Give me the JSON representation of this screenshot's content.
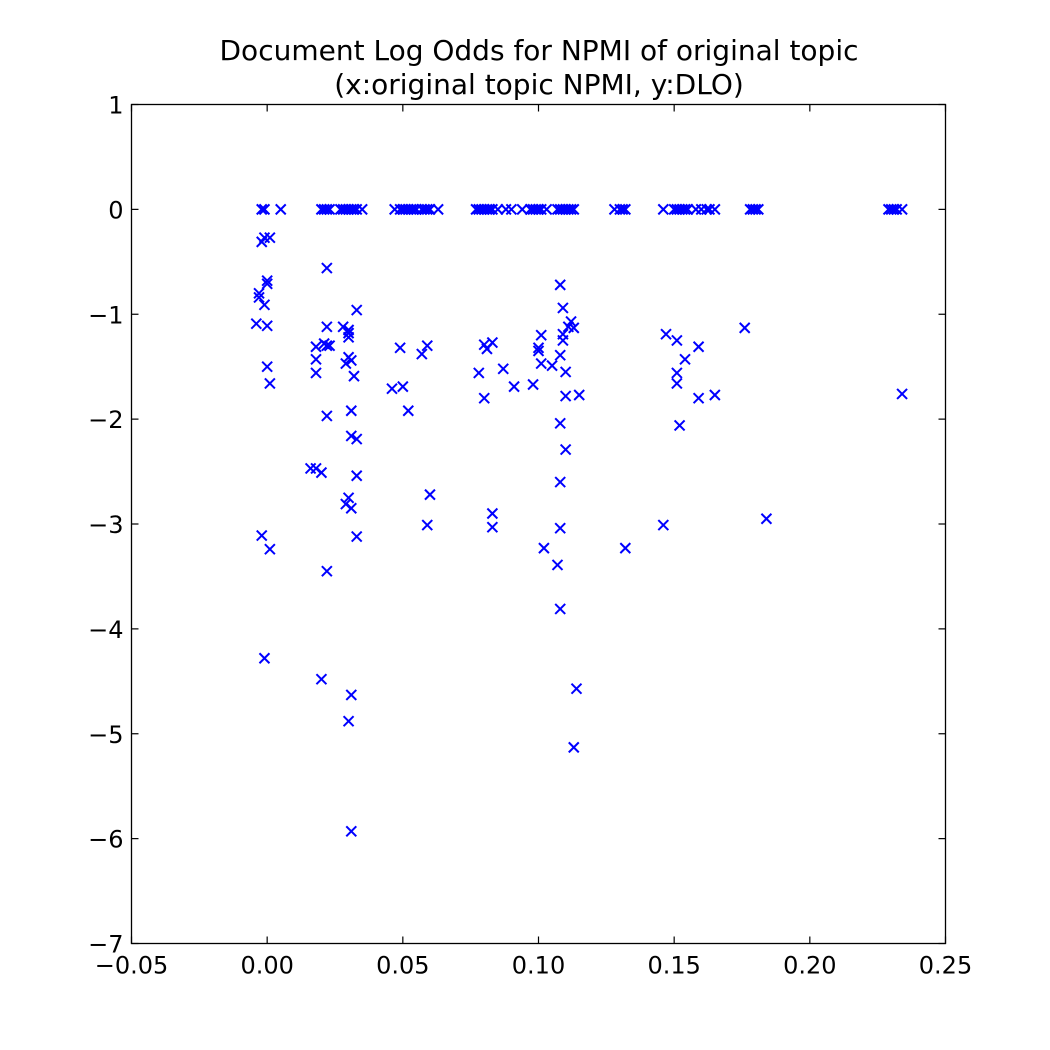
{
  "chart_data": {
    "type": "scatter",
    "title": "Document Log Odds for NPMI of original topic",
    "subtitle": "(x:original topic NPMI, y:DLO)",
    "xlabel": "",
    "ylabel": "",
    "xlim": [
      -0.05,
      0.25
    ],
    "ylim": [
      -7,
      1
    ],
    "xticks": [
      -0.05,
      0.0,
      0.05,
      0.1,
      0.15,
      0.2,
      0.25
    ],
    "xtick_labels": [
      "−0.05",
      "0.00",
      "0.05",
      "0.10",
      "0.15",
      "0.20",
      "0.25"
    ],
    "yticks": [
      1,
      0,
      -1,
      -2,
      -3,
      -4,
      -5,
      -6,
      -7
    ],
    "ytick_labels": [
      "1",
      "0",
      "−1",
      "−2",
      "−3",
      "−4",
      "−5",
      "−6",
      "−7"
    ],
    "grid": false,
    "marker": "x",
    "marker_color": "#0000ff",
    "series": [
      {
        "points": [
          [
            -0.002,
            0
          ],
          [
            -0.001,
            0
          ],
          [
            0.005,
            0
          ],
          [
            0.02,
            0
          ],
          [
            0.021,
            0
          ],
          [
            0.022,
            0
          ],
          [
            0.023,
            0
          ],
          [
            0.027,
            0
          ],
          [
            0.028,
            0
          ],
          [
            0.029,
            0
          ],
          [
            0.03,
            0
          ],
          [
            0.031,
            0
          ],
          [
            0.032,
            0
          ],
          [
            0.033,
            0
          ],
          [
            0.035,
            0
          ],
          [
            0.047,
            0
          ],
          [
            0.049,
            0
          ],
          [
            0.05,
            0
          ],
          [
            0.051,
            0
          ],
          [
            0.052,
            0
          ],
          [
            0.053,
            0
          ],
          [
            0.054,
            0
          ],
          [
            0.055,
            0
          ],
          [
            0.057,
            0
          ],
          [
            0.058,
            0
          ],
          [
            0.059,
            0
          ],
          [
            0.06,
            0
          ],
          [
            0.063,
            0
          ],
          [
            0.077,
            0
          ],
          [
            0.078,
            0
          ],
          [
            0.079,
            0
          ],
          [
            0.08,
            0
          ],
          [
            0.081,
            0
          ],
          [
            0.082,
            0
          ],
          [
            0.083,
            0
          ],
          [
            0.085,
            0
          ],
          [
            0.088,
            0
          ],
          [
            0.09,
            0
          ],
          [
            0.094,
            0
          ],
          [
            0.097,
            0
          ],
          [
            0.098,
            0
          ],
          [
            0.099,
            0
          ],
          [
            0.1,
            0
          ],
          [
            0.101,
            0
          ],
          [
            0.103,
            0
          ],
          [
            0.107,
            0
          ],
          [
            0.108,
            0
          ],
          [
            0.109,
            0
          ],
          [
            0.11,
            0
          ],
          [
            0.111,
            0
          ],
          [
            0.112,
            0
          ],
          [
            0.113,
            0
          ],
          [
            0.128,
            0
          ],
          [
            0.13,
            0
          ],
          [
            0.131,
            0
          ],
          [
            0.132,
            0
          ],
          [
            0.146,
            0
          ],
          [
            0.15,
            0
          ],
          [
            0.151,
            0
          ],
          [
            0.152,
            0
          ],
          [
            0.153,
            0
          ],
          [
            0.154,
            0
          ],
          [
            0.155,
            0
          ],
          [
            0.158,
            0
          ],
          [
            0.16,
            0
          ],
          [
            0.162,
            0
          ],
          [
            0.163,
            0
          ],
          [
            0.165,
            0
          ],
          [
            0.178,
            0
          ],
          [
            0.179,
            0
          ],
          [
            0.18,
            0
          ],
          [
            0.181,
            0
          ],
          [
            0.229,
            0
          ],
          [
            0.23,
            0
          ],
          [
            0.231,
            0
          ],
          [
            0.232,
            0
          ],
          [
            0.234,
            0
          ],
          [
            -0.002,
            -0.31
          ],
          [
            -0.001,
            -0.27
          ],
          [
            0.001,
            -0.27
          ],
          [
            -0.003,
            -0.8
          ],
          [
            -0.003,
            -0.84
          ],
          [
            -0.001,
            -0.91
          ],
          [
            0.0,
            -0.68
          ],
          [
            0.0,
            -0.71
          ],
          [
            -0.004,
            -1.09
          ],
          [
            0.0,
            -1.11
          ],
          [
            0.0,
            -1.5
          ],
          [
            0.001,
            -1.66
          ],
          [
            -0.002,
            -3.11
          ],
          [
            0.001,
            -3.24
          ],
          [
            -0.001,
            -4.28
          ],
          [
            0.016,
            -2.47
          ],
          [
            0.018,
            -2.47
          ],
          [
            0.02,
            -2.51
          ],
          [
            0.018,
            -1.31
          ],
          [
            0.018,
            -1.43
          ],
          [
            0.018,
            -1.56
          ],
          [
            0.021,
            -1.28
          ],
          [
            0.022,
            -1.3
          ],
          [
            0.023,
            -1.3
          ],
          [
            0.022,
            -1.12
          ],
          [
            0.022,
            -0.56
          ],
          [
            0.022,
            -1.97
          ],
          [
            0.022,
            -3.45
          ],
          [
            0.02,
            -4.48
          ],
          [
            0.028,
            -1.12
          ],
          [
            0.029,
            -1.47
          ],
          [
            0.03,
            -1.15
          ],
          [
            0.03,
            -1.18
          ],
          [
            0.03,
            -1.22
          ],
          [
            0.03,
            -1.41
          ],
          [
            0.031,
            -1.44
          ],
          [
            0.032,
            -1.59
          ],
          [
            0.033,
            -0.96
          ],
          [
            0.031,
            -1.92
          ],
          [
            0.031,
            -2.16
          ],
          [
            0.033,
            -2.19
          ],
          [
            0.033,
            -2.54
          ],
          [
            0.033,
            -3.12
          ],
          [
            0.029,
            -2.81
          ],
          [
            0.03,
            -2.75
          ],
          [
            0.031,
            -2.85
          ],
          [
            0.031,
            -4.63
          ],
          [
            0.03,
            -4.88
          ],
          [
            0.031,
            -5.93
          ],
          [
            0.046,
            -1.71
          ],
          [
            0.049,
            -1.32
          ],
          [
            0.05,
            -1.69
          ],
          [
            0.052,
            -1.92
          ],
          [
            0.057,
            -1.38
          ],
          [
            0.059,
            -1.3
          ],
          [
            0.06,
            -2.72
          ],
          [
            0.059,
            -3.01
          ],
          [
            0.078,
            -1.56
          ],
          [
            0.08,
            -1.29
          ],
          [
            0.08,
            -1.8
          ],
          [
            0.081,
            -1.33
          ],
          [
            0.083,
            -1.27
          ],
          [
            0.083,
            -2.9
          ],
          [
            0.083,
            -3.03
          ],
          [
            0.087,
            -1.52
          ],
          [
            0.091,
            -1.69
          ],
          [
            0.098,
            -1.67
          ],
          [
            0.1,
            -1.32
          ],
          [
            0.1,
            -1.35
          ],
          [
            0.101,
            -1.2
          ],
          [
            0.101,
            -1.47
          ],
          [
            0.102,
            -3.23
          ],
          [
            0.105,
            -1.49
          ],
          [
            0.107,
            -3.39
          ],
          [
            0.108,
            -3.04
          ],
          [
            0.108,
            -3.81
          ],
          [
            0.108,
            -2.04
          ],
          [
            0.108,
            -2.6
          ],
          [
            0.108,
            -1.39
          ],
          [
            0.108,
            -0.72
          ],
          [
            0.109,
            -0.94
          ],
          [
            0.109,
            -1.25
          ],
          [
            0.109,
            -1.19
          ],
          [
            0.11,
            -1.55
          ],
          [
            0.11,
            -1.78
          ],
          [
            0.11,
            -2.29
          ],
          [
            0.111,
            -1.12
          ],
          [
            0.112,
            -1.07
          ],
          [
            0.113,
            -1.13
          ],
          [
            0.113,
            -5.13
          ],
          [
            0.114,
            -4.57
          ],
          [
            0.115,
            -1.77
          ],
          [
            0.132,
            -3.23
          ],
          [
            0.147,
            -1.19
          ],
          [
            0.146,
            -3.01
          ],
          [
            0.151,
            -1.25
          ],
          [
            0.151,
            -1.56
          ],
          [
            0.151,
            -1.66
          ],
          [
            0.152,
            -2.06
          ],
          [
            0.154,
            -1.43
          ],
          [
            0.159,
            -1.31
          ],
          [
            0.159,
            -1.8
          ],
          [
            0.165,
            -1.77
          ],
          [
            0.176,
            -1.13
          ],
          [
            0.184,
            -2.95
          ],
          [
            0.234,
            -1.76
          ]
        ]
      }
    ]
  }
}
